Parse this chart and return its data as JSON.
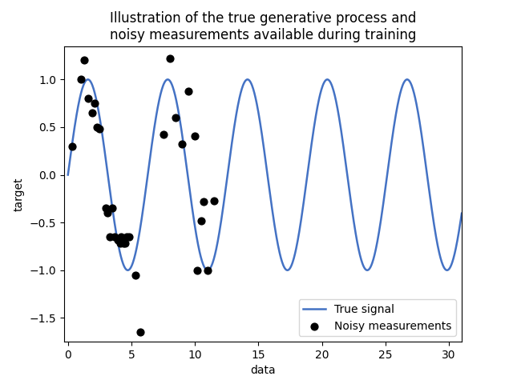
{
  "title": "Illustration of the true generative process and\nnoisy measurements available during training",
  "xlabel": "data",
  "ylabel": "target",
  "signal_xmin": 0,
  "signal_xmax": 31,
  "signal_color": "#4472c4",
  "signal_linewidth": 1.8,
  "scatter_x": [
    0.3,
    1.0,
    1.3,
    1.6,
    1.9,
    2.1,
    2.3,
    2.5,
    3.0,
    3.1,
    3.3,
    3.5,
    3.7,
    3.9,
    4.1,
    4.2,
    4.35,
    4.5,
    4.65,
    4.8,
    5.3,
    5.7,
    7.5,
    8.0,
    8.5,
    9.0,
    9.5,
    10.0,
    10.2,
    10.5,
    10.7,
    11.0,
    11.5
  ],
  "scatter_y": [
    0.3,
    1.0,
    1.2,
    0.8,
    0.65,
    0.75,
    0.5,
    0.48,
    -0.35,
    -0.4,
    -0.65,
    -0.35,
    -0.65,
    -0.68,
    -0.72,
    -0.65,
    -0.72,
    -0.72,
    -0.65,
    -0.65,
    -1.05,
    -1.65,
    0.42,
    1.22,
    0.6,
    0.32,
    0.88,
    0.41,
    -1.0,
    -0.48,
    -0.28,
    -1.0,
    -0.27
  ],
  "scatter_color": "black",
  "scatter_size": 40,
  "xlim": [
    -0.3,
    31
  ],
  "ylim": [
    -1.75,
    1.35
  ],
  "xticks": [
    0,
    5,
    10,
    15,
    20,
    25,
    30
  ],
  "yticks": [
    -1.5,
    -1.0,
    -0.5,
    0.0,
    0.5,
    1.0
  ],
  "legend_loc": "lower right",
  "legend_signal_label": "True signal",
  "legend_scatter_label": "Noisy measurements",
  "figsize": [
    6.4,
    4.8
  ],
  "dpi": 100
}
